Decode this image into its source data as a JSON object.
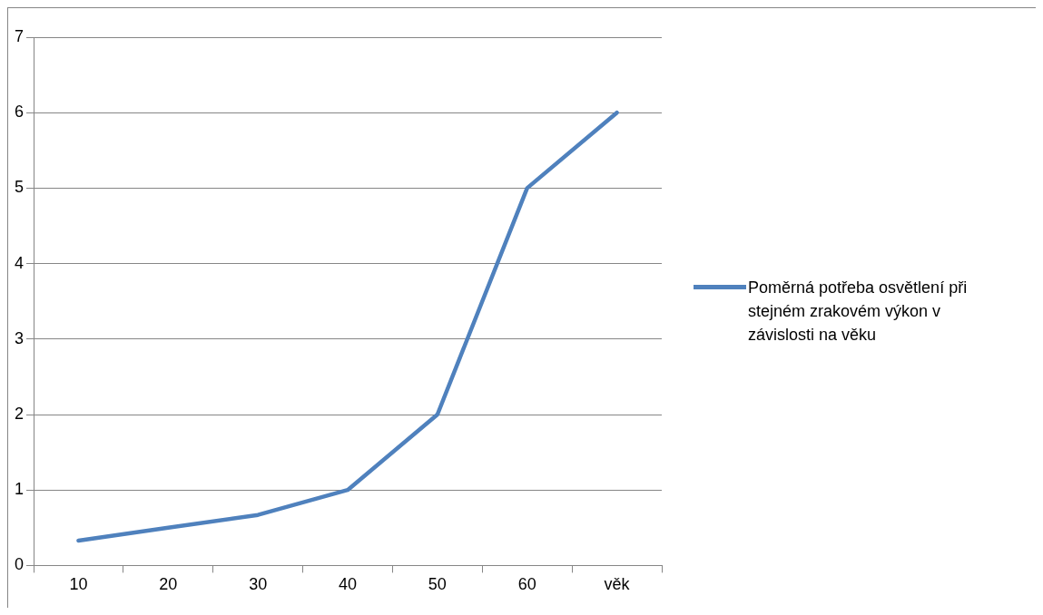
{
  "chart_data": {
    "type": "line",
    "categories": [
      "10",
      "20",
      "30",
      "40",
      "50",
      "60",
      "věk"
    ],
    "series": [
      {
        "name": "Poměrná potřeba osvětlení při stejném zrakovém výkon v závislosti na věku",
        "color": "#4f81bd",
        "values": [
          0.33,
          0.5,
          0.67,
          1,
          2,
          5,
          6
        ]
      }
    ],
    "ylim": [
      0,
      7
    ],
    "yticks": [
      0,
      1,
      2,
      3,
      4,
      5,
      6,
      7
    ],
    "grid": "y",
    "legend": "right",
    "marker": "none",
    "line_style": "solid"
  }
}
